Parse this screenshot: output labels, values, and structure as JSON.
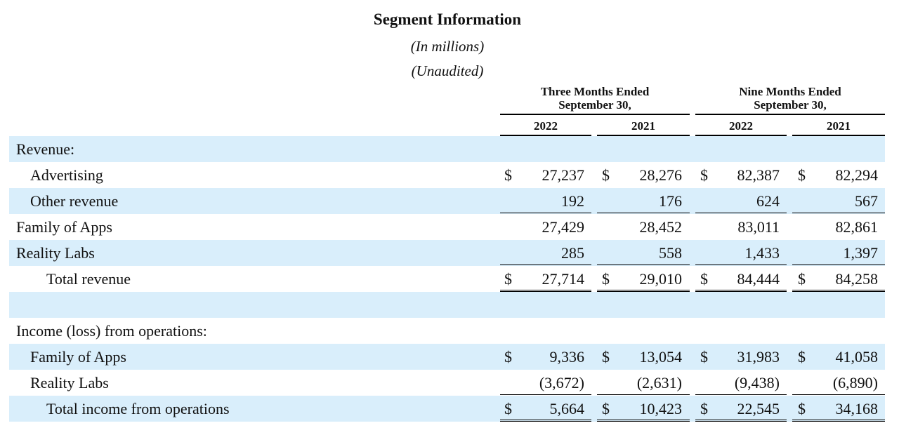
{
  "title": "Segment Information",
  "subtitle_units": "(In millions)",
  "subtitle_audit": "(Unaudited)",
  "column_groups": [
    {
      "line1": "Three Months Ended",
      "line2": "September 30,"
    },
    {
      "line1": "Nine Months Ended",
      "line2": "September 30,"
    }
  ],
  "years": [
    "2022",
    "2021",
    "2022",
    "2021"
  ],
  "currency": "$",
  "rows": [
    {
      "label": "Revenue:",
      "level": 0,
      "shaded": true,
      "values": []
    },
    {
      "label": "Advertising",
      "level": 1,
      "shaded": false,
      "dollar": true,
      "values": [
        "27,237",
        "28,276",
        "82,387",
        "82,294"
      ]
    },
    {
      "label": "Other revenue",
      "level": 1,
      "shaded": true,
      "values": [
        "192",
        "176",
        "624",
        "567"
      ],
      "line_below": "single"
    },
    {
      "label": "Family of Apps",
      "level": 0,
      "shaded": false,
      "values": [
        "27,429",
        "28,452",
        "83,011",
        "82,861"
      ]
    },
    {
      "label": "Reality Labs",
      "level": 0,
      "shaded": true,
      "values": [
        "285",
        "558",
        "1,433",
        "1,397"
      ],
      "line_below": "single"
    },
    {
      "label": "Total revenue",
      "level": 2,
      "shaded": false,
      "dollar": true,
      "values": [
        "27,714",
        "29,010",
        "84,444",
        "84,258"
      ],
      "line_below": "double"
    },
    {
      "label": "",
      "level": 0,
      "shaded": true,
      "values": []
    },
    {
      "label": "Income (loss) from operations:",
      "level": 0,
      "shaded": false,
      "values": []
    },
    {
      "label": "Family of Apps",
      "level": 1,
      "shaded": true,
      "dollar": true,
      "values": [
        "9,336",
        "13,054",
        "31,983",
        "41,058"
      ]
    },
    {
      "label": "Reality Labs",
      "level": 1,
      "shaded": false,
      "values": [
        "(3,672)",
        "(2,631)",
        "(9,438)",
        "(6,890)"
      ],
      "line_below": "single"
    },
    {
      "label": "Total income from operations",
      "level": 2,
      "shaded": true,
      "dollar": true,
      "values": [
        "5,664",
        "10,423",
        "22,545",
        "34,168"
      ],
      "line_below": "double"
    }
  ]
}
